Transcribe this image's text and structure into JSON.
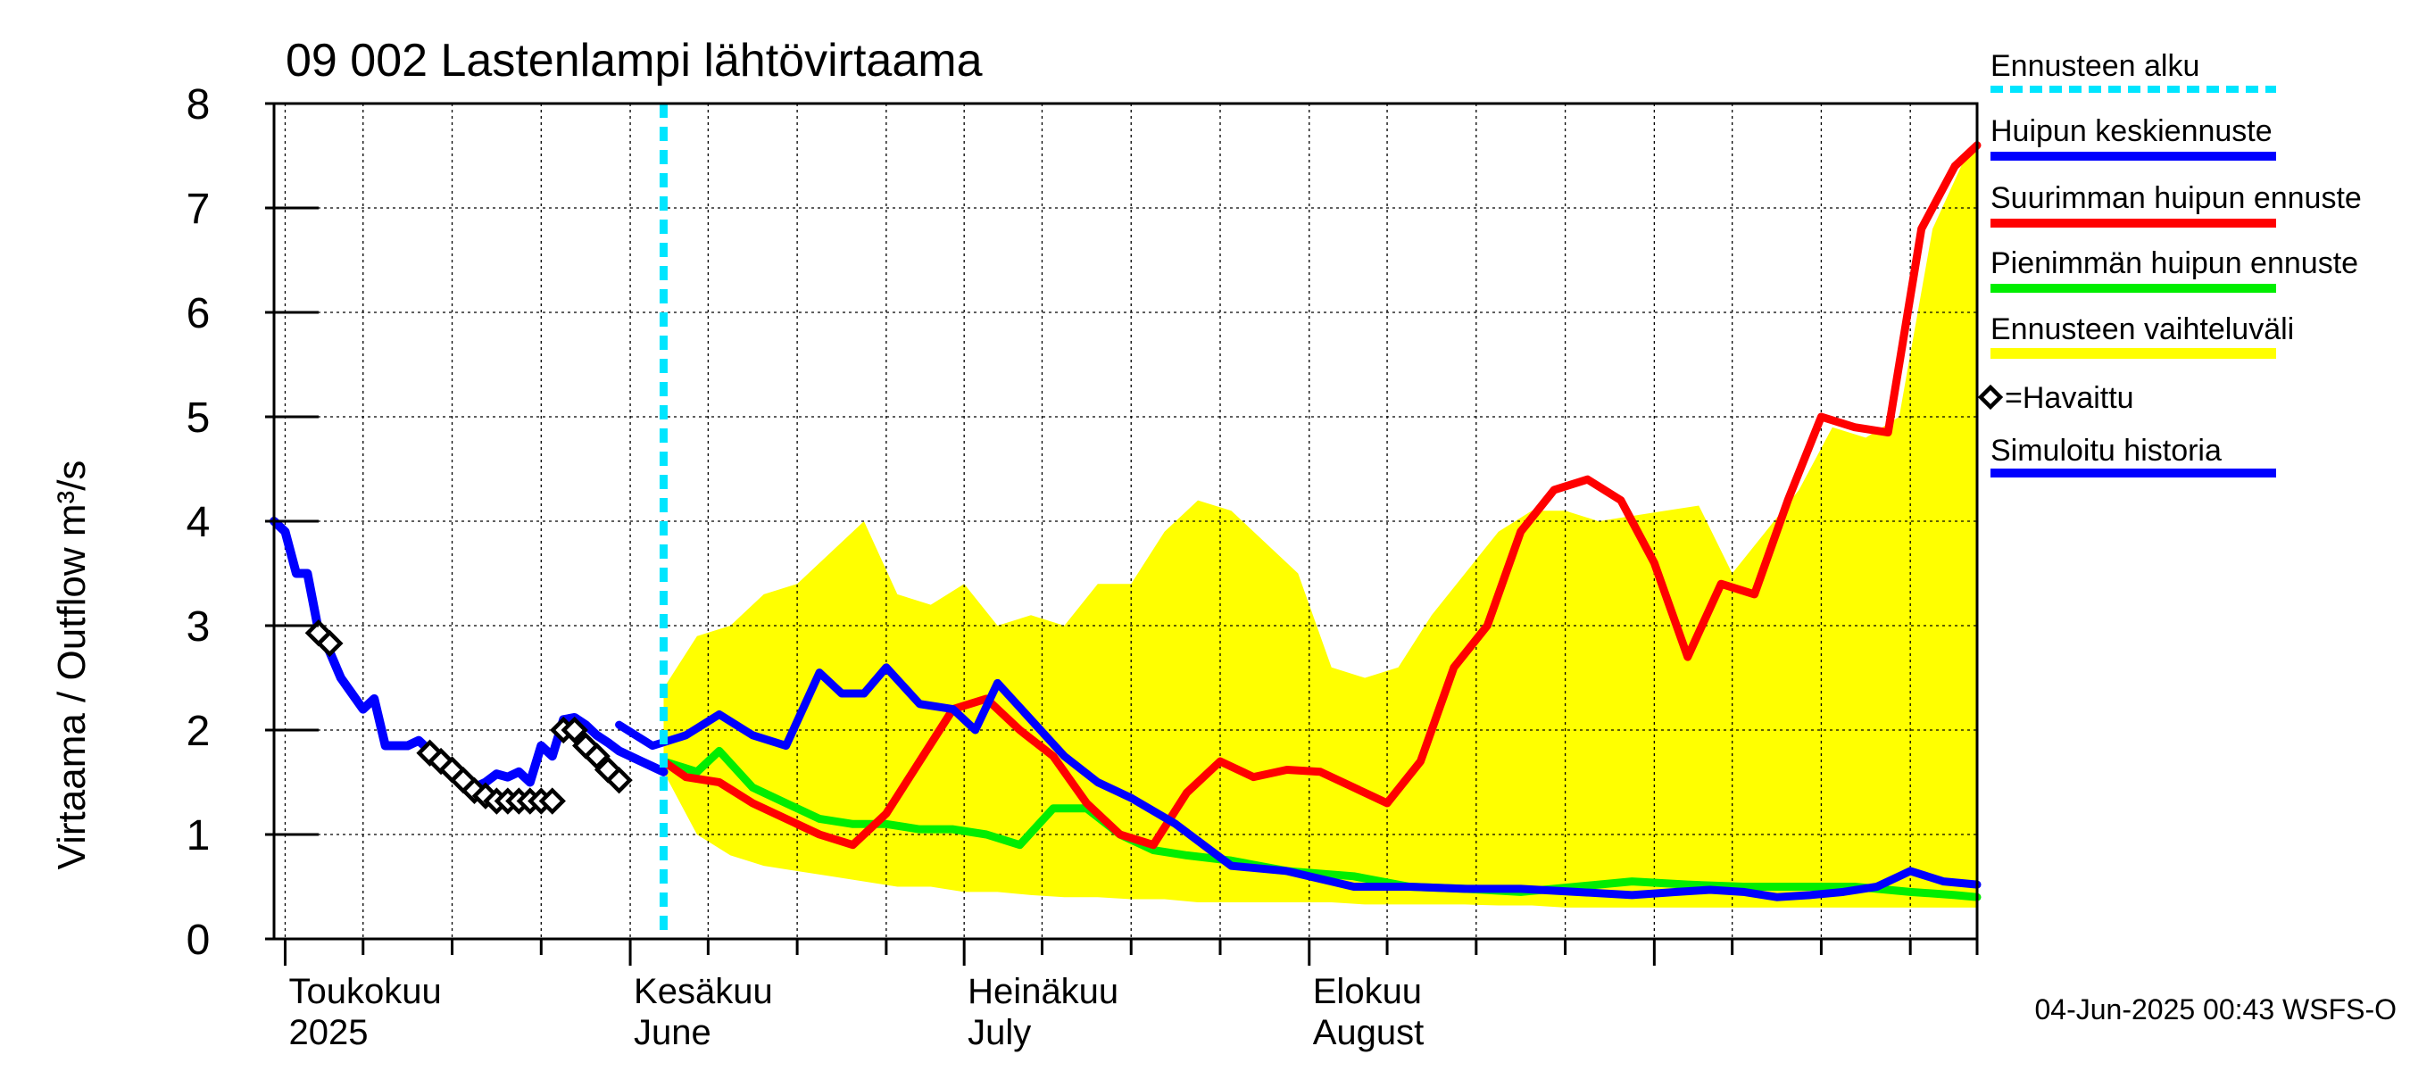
{
  "chart_data": {
    "type": "line",
    "title": "09 002 Lastenlampi lähtövirtaama",
    "ylabel": "Virtaama / Outflow    m³/s",
    "ylim": [
      0,
      8
    ],
    "yticks": [
      0,
      1,
      2,
      3,
      4,
      5,
      6,
      7,
      8
    ],
    "xlim": [
      "2025-04-30",
      "2025-09-30"
    ],
    "x_labels": [
      {
        "date": "2025-05-01",
        "line1": "Toukokuu",
        "line2": "2025"
      },
      {
        "date": "2025-06-01",
        "line1": "Kesäkuu",
        "line2": "June"
      },
      {
        "date": "2025-07-01",
        "line1": "Heinäkuu",
        "line2": "July"
      },
      {
        "date": "2025-08-01",
        "line1": "Elokuu",
        "line2": "August"
      }
    ],
    "grid": true,
    "legend_position": "right",
    "forecast_start": "2025-06-04",
    "timestamp": "04-Jun-2025 00:43 WSFS-O",
    "legend": [
      {
        "key": "forecast_start",
        "label": "Ennusteen alku",
        "color": "#00e5ff",
        "style": "dashed"
      },
      {
        "key": "mean_peak",
        "label": "Huipun keskiennuste",
        "color": "#0000ff",
        "style": "line"
      },
      {
        "key": "max_peak",
        "label": "Suurimman huipun ennuste",
        "color": "#ff0000",
        "style": "line"
      },
      {
        "key": "min_peak",
        "label": "Pienimmän huipun ennuste",
        "color": "#00ee00",
        "style": "line"
      },
      {
        "key": "range",
        "label": "Ennusteen vaihteluväli",
        "color": "#ffff00",
        "style": "band"
      },
      {
        "key": "observed",
        "label": "=Havaittu",
        "color": "#000000",
        "style": "marker"
      },
      {
        "key": "simulated",
        "label": "Simuloitu historia",
        "color": "#0000ff",
        "style": "line"
      }
    ],
    "series": [
      {
        "name": "Simuloitu historia",
        "color": "#0000ff",
        "x": [
          "2025-04-30",
          "2025-05-01",
          "2025-05-02",
          "2025-05-03",
          "2025-05-04",
          "2025-05-05",
          "2025-05-06",
          "2025-05-07",
          "2025-05-08",
          "2025-05-09",
          "2025-05-10",
          "2025-05-11",
          "2025-05-12",
          "2025-05-13",
          "2025-05-14",
          "2025-05-15",
          "2025-05-16",
          "2025-05-17",
          "2025-05-18",
          "2025-05-19",
          "2025-05-20",
          "2025-05-21",
          "2025-05-22",
          "2025-05-23",
          "2025-05-24",
          "2025-05-25",
          "2025-05-26",
          "2025-05-27",
          "2025-05-28",
          "2025-05-29",
          "2025-05-30",
          "2025-05-31",
          "2025-06-01",
          "2025-06-02",
          "2025-06-03",
          "2025-06-04"
        ],
        "y": [
          4.0,
          3.9,
          3.5,
          3.5,
          2.95,
          2.75,
          2.5,
          2.35,
          2.2,
          2.3,
          1.85,
          1.85,
          1.85,
          1.9,
          1.8,
          1.7,
          1.6,
          1.5,
          1.45,
          1.5,
          1.58,
          1.55,
          1.6,
          1.5,
          1.85,
          1.75,
          2.1,
          2.12,
          2.05,
          1.95,
          1.88,
          1.8,
          1.75,
          1.7,
          1.65,
          1.6
        ]
      },
      {
        "name": "Havaittu",
        "color": "#000000",
        "x": [
          "2025-05-04",
          "2025-05-05",
          "2025-05-14",
          "2025-05-15",
          "2025-05-16",
          "2025-05-17",
          "2025-05-18",
          "2025-05-19",
          "2025-05-20",
          "2025-05-21",
          "2025-05-22",
          "2025-05-23",
          "2025-05-24",
          "2025-05-25",
          "2025-05-26",
          "2025-05-27",
          "2025-05-28",
          "2025-05-29",
          "2025-05-30",
          "2025-05-31"
        ],
        "y": [
          2.93,
          2.83,
          1.78,
          1.7,
          1.62,
          1.52,
          1.42,
          1.37,
          1.32,
          1.32,
          1.32,
          1.32,
          1.32,
          1.32,
          2.0,
          2.0,
          1.85,
          1.75,
          1.62,
          1.52
        ]
      },
      {
        "name": "Huipun keskiennuste",
        "color": "#0000ff",
        "x": [
          "2025-05-31",
          "2025-06-03",
          "2025-06-06",
          "2025-06-09",
          "2025-06-12",
          "2025-06-15",
          "2025-06-18",
          "2025-06-20",
          "2025-06-22",
          "2025-06-24",
          "2025-06-27",
          "2025-06-30",
          "2025-07-02",
          "2025-07-04",
          "2025-07-07",
          "2025-07-10",
          "2025-07-13",
          "2025-07-16",
          "2025-07-20",
          "2025-07-25",
          "2025-07-30",
          "2025-08-05",
          "2025-08-10",
          "2025-08-15",
          "2025-08-20",
          "2025-08-25",
          "2025-08-30",
          "2025-09-03",
          "2025-09-06",
          "2025-09-09",
          "2025-09-12",
          "2025-09-15",
          "2025-09-18",
          "2025-09-21",
          "2025-09-24",
          "2025-09-27",
          "2025-09-30"
        ],
        "y": [
          2.05,
          1.85,
          1.95,
          2.15,
          1.95,
          1.85,
          2.55,
          2.35,
          2.35,
          2.6,
          2.25,
          2.2,
          2.0,
          2.45,
          2.1,
          1.75,
          1.5,
          1.35,
          1.1,
          0.7,
          0.65,
          0.5,
          0.5,
          0.48,
          0.48,
          0.45,
          0.42,
          0.45,
          0.47,
          0.45,
          0.4,
          0.42,
          0.45,
          0.5,
          0.65,
          0.55,
          0.52
        ]
      },
      {
        "name": "Suurimman huipun ennuste",
        "color": "#ff0000",
        "x": [
          "2025-06-04",
          "2025-06-06",
          "2025-06-09",
          "2025-06-12",
          "2025-06-15",
          "2025-06-18",
          "2025-06-21",
          "2025-06-24",
          "2025-06-27",
          "2025-06-30",
          "2025-07-03",
          "2025-07-06",
          "2025-07-09",
          "2025-07-12",
          "2025-07-15",
          "2025-07-18",
          "2025-07-21",
          "2025-07-24",
          "2025-07-27",
          "2025-07-30",
          "2025-08-02",
          "2025-08-05",
          "2025-08-08",
          "2025-08-11",
          "2025-08-14",
          "2025-08-17",
          "2025-08-20",
          "2025-08-23",
          "2025-08-26",
          "2025-08-29",
          "2025-09-01",
          "2025-09-04",
          "2025-09-07",
          "2025-09-10",
          "2025-09-13",
          "2025-09-16",
          "2025-09-19",
          "2025-09-22",
          "2025-09-25",
          "2025-09-28",
          "2025-09-30"
        ],
        "y": [
          1.7,
          1.55,
          1.5,
          1.3,
          1.15,
          1.0,
          0.9,
          1.2,
          1.7,
          2.2,
          2.3,
          2.0,
          1.75,
          1.3,
          1.0,
          0.9,
          1.4,
          1.7,
          1.55,
          1.62,
          1.6,
          1.45,
          1.3,
          1.7,
          2.6,
          3.0,
          3.9,
          4.3,
          4.4,
          4.2,
          3.6,
          2.7,
          3.4,
          3.3,
          4.2,
          5.0,
          4.9,
          4.85,
          6.8,
          7.4,
          7.6
        ]
      },
      {
        "name": "Pienimmän huipun ennuste",
        "color": "#00ee00",
        "x": [
          "2025-06-04",
          "2025-06-07",
          "2025-06-09",
          "2025-06-12",
          "2025-06-15",
          "2025-06-18",
          "2025-06-21",
          "2025-06-24",
          "2025-06-27",
          "2025-06-30",
          "2025-07-03",
          "2025-07-06",
          "2025-07-09",
          "2025-07-12",
          "2025-07-15",
          "2025-07-18",
          "2025-07-21",
          "2025-07-25",
          "2025-07-30",
          "2025-08-05",
          "2025-08-10",
          "2025-08-15",
          "2025-08-20",
          "2025-08-25",
          "2025-08-30",
          "2025-09-04",
          "2025-09-09",
          "2025-09-14",
          "2025-09-19",
          "2025-09-24",
          "2025-09-28",
          "2025-09-30"
        ],
        "y": [
          1.7,
          1.6,
          1.8,
          1.45,
          1.3,
          1.15,
          1.1,
          1.1,
          1.05,
          1.05,
          1.0,
          0.9,
          1.25,
          1.25,
          1.0,
          0.85,
          0.8,
          0.75,
          0.65,
          0.6,
          0.5,
          0.48,
          0.45,
          0.5,
          0.55,
          0.52,
          0.5,
          0.5,
          0.5,
          0.45,
          0.42,
          0.4
        ]
      },
      {
        "name": "Ennusteen vaihteluväli",
        "color": "#ffff00",
        "type": "band",
        "x": [
          "2025-06-04",
          "2025-06-07",
          "2025-06-10",
          "2025-06-13",
          "2025-06-16",
          "2025-06-19",
          "2025-06-22",
          "2025-06-25",
          "2025-06-28",
          "2025-07-01",
          "2025-07-04",
          "2025-07-07",
          "2025-07-10",
          "2025-07-13",
          "2025-07-16",
          "2025-07-19",
          "2025-07-22",
          "2025-07-25",
          "2025-07-28",
          "2025-07-31",
          "2025-08-03",
          "2025-08-06",
          "2025-08-09",
          "2025-08-12",
          "2025-08-15",
          "2025-08-18",
          "2025-08-21",
          "2025-08-24",
          "2025-08-27",
          "2025-08-30",
          "2025-09-02",
          "2025-09-05",
          "2025-09-08",
          "2025-09-11",
          "2025-09-14",
          "2025-09-17",
          "2025-09-20",
          "2025-09-23",
          "2025-09-26",
          "2025-09-29",
          "2025-09-30"
        ],
        "y_low": [
          1.6,
          1.0,
          0.8,
          0.7,
          0.65,
          0.6,
          0.55,
          0.5,
          0.5,
          0.45,
          0.45,
          0.42,
          0.4,
          0.4,
          0.38,
          0.38,
          0.35,
          0.35,
          0.35,
          0.35,
          0.35,
          0.33,
          0.33,
          0.33,
          0.33,
          0.32,
          0.32,
          0.3,
          0.3,
          0.3,
          0.3,
          0.3,
          0.3,
          0.3,
          0.3,
          0.3,
          0.3,
          0.3,
          0.3,
          0.3,
          0.3
        ],
        "y_high": [
          2.4,
          2.9,
          3.0,
          3.3,
          3.4,
          3.7,
          4.0,
          3.3,
          3.2,
          3.4,
          3.0,
          3.1,
          3.0,
          3.4,
          3.4,
          3.9,
          4.2,
          4.1,
          3.8,
          3.5,
          2.6,
          2.5,
          2.6,
          3.1,
          3.5,
          3.9,
          4.1,
          4.1,
          4.0,
          4.05,
          4.1,
          4.15,
          3.5,
          3.9,
          4.3,
          4.9,
          4.8,
          5.0,
          6.8,
          7.5,
          7.6
        ]
      }
    ]
  }
}
